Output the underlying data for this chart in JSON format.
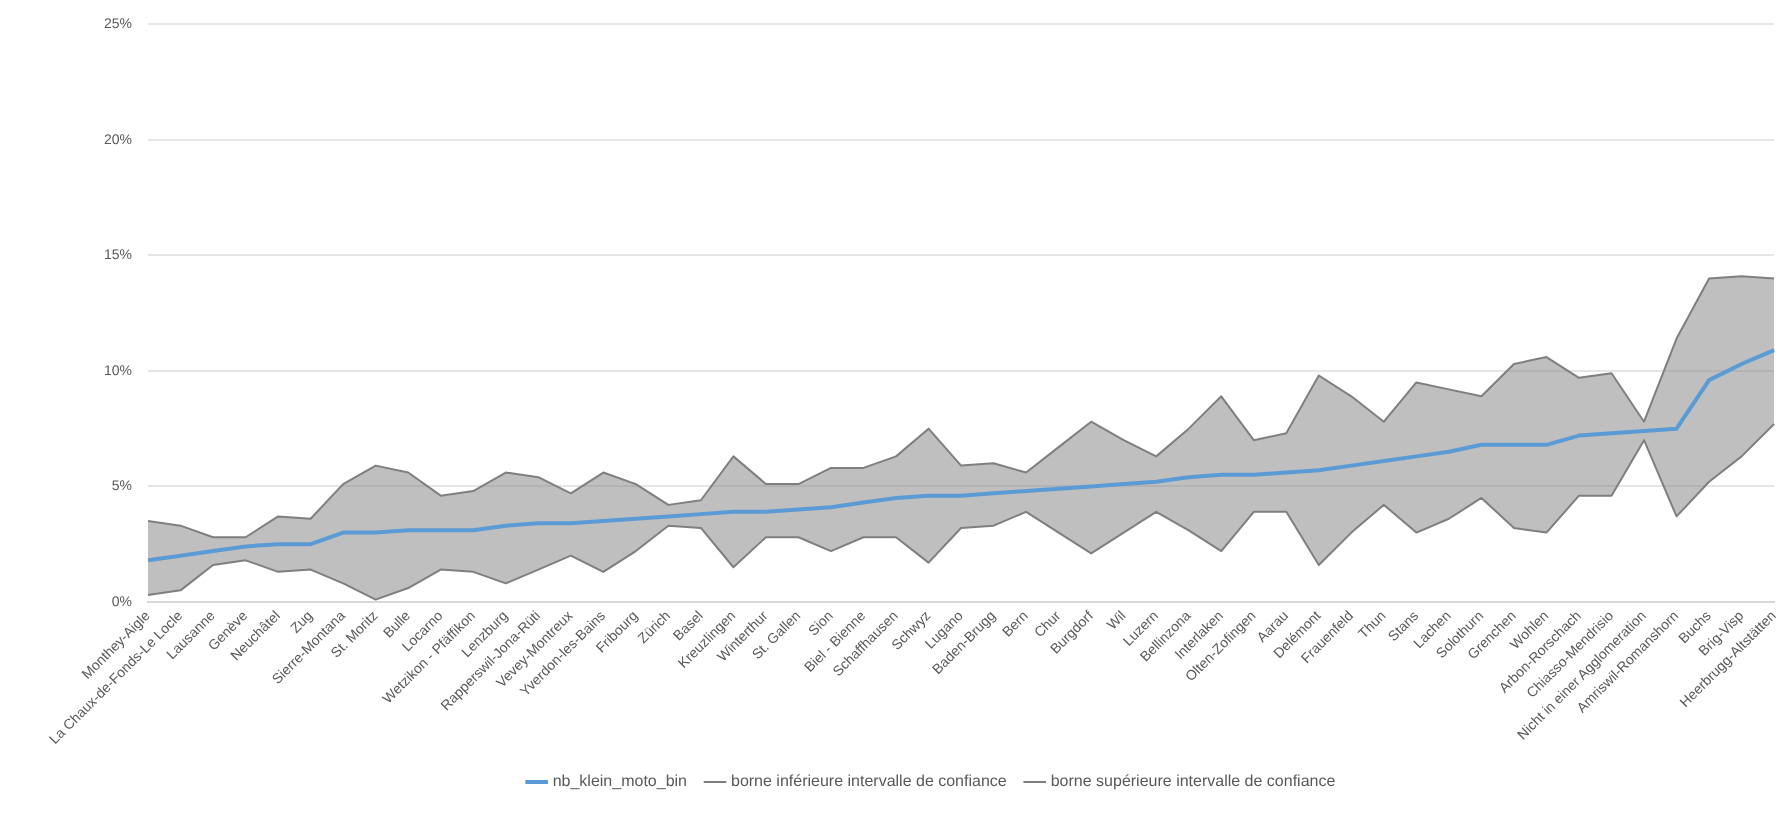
{
  "chart_data": {
    "type": "line",
    "categories": [
      "Monthey-Aigle",
      "La Chaux-de-Fonds-Le Locle",
      "Lausanne",
      "Genève",
      "Neuchâtel",
      "Zug",
      "Sierre-Montana",
      "St. Moritz",
      "Bulle",
      "Locarno",
      "Wetzikon - Pfäffikon",
      "Lenzburg",
      "Rapperswil-Jona-Rüti",
      "Vevey-Montreux",
      "Yverdon-les-Bains",
      "Fribourg",
      "Zürich",
      "Basel",
      "Kreuzlingen",
      "Winterthur",
      "St. Gallen",
      "Sion",
      "Biel - Bienne",
      "Schaffhausen",
      "Schwyz",
      "Lugano",
      "Baden-Brugg",
      "Bern",
      "Chur",
      "Burgdorf",
      "Wil",
      "Luzern",
      "Bellinzona",
      "Interlaken",
      "Olten-Zofingen",
      "Aarau",
      "Delémont",
      "Frauenfeld",
      "Thun",
      "Stans",
      "Lachen",
      "Solothurn",
      "Grenchen",
      "Wohlen",
      "Arbon-Rorschach",
      "Chiasso-Mendrisio",
      "Nicht in einer Agglomeration",
      "Amriswil-Romanshorn",
      "Buchs",
      "Brig-Visp",
      "Heerbrugg-Altstätten"
    ],
    "series": [
      {
        "name": "nb_klein_moto_bin",
        "color": "#5b9bd5",
        "values": [
          1.8,
          2.0,
          2.2,
          2.4,
          2.5,
          2.5,
          3.0,
          3.0,
          3.1,
          3.1,
          3.1,
          3.3,
          3.4,
          3.4,
          3.5,
          3.6,
          3.7,
          3.8,
          3.9,
          3.9,
          4.0,
          4.1,
          4.3,
          4.5,
          4.6,
          4.6,
          4.7,
          4.8,
          4.9,
          5.0,
          5.1,
          5.2,
          5.4,
          5.5,
          5.5,
          5.6,
          5.7,
          5.9,
          6.1,
          6.3,
          6.5,
          6.8,
          6.8,
          6.8,
          7.2,
          7.3,
          7.4,
          7.5,
          9.6,
          10.3,
          10.9
        ],
        "lower": [
          0.3,
          0.5,
          1.6,
          1.8,
          1.3,
          1.4,
          0.8,
          0.1,
          0.6,
          1.4,
          1.3,
          0.8,
          1.4,
          2.0,
          1.3,
          2.2,
          3.3,
          3.2,
          1.5,
          2.8,
          2.8,
          2.2,
          2.8,
          2.8,
          1.7,
          3.2,
          3.3,
          3.9,
          3.0,
          2.1,
          3.0,
          3.9,
          3.1,
          2.2,
          3.9,
          3.9,
          1.6,
          3.0,
          4.2,
          3.0,
          3.6,
          4.5,
          3.2,
          3.0,
          4.6,
          4.6,
          7.0,
          3.7,
          5.2,
          6.3,
          7.7
        ],
        "upper": [
          3.5,
          3.3,
          2.8,
          2.8,
          3.7,
          3.6,
          5.1,
          5.9,
          5.6,
          4.6,
          4.8,
          5.6,
          5.4,
          4.7,
          5.6,
          5.1,
          4.2,
          4.4,
          6.3,
          5.1,
          5.1,
          5.8,
          5.8,
          6.3,
          7.5,
          5.9,
          6.0,
          5.6,
          6.7,
          7.8,
          7.0,
          6.3,
          7.5,
          8.9,
          7.0,
          7.3,
          9.8,
          8.9,
          7.8,
          9.5,
          9.2,
          8.9,
          10.3,
          10.6,
          9.7,
          9.9,
          7.8,
          11.4,
          14.0,
          14.1,
          14.0
        ]
      },
      {
        "name": "borne inférieure intervalle de confiance",
        "color": "#7f7f7f",
        "values": [
          0.3,
          0.5,
          1.6,
          1.8,
          1.3,
          1.4,
          0.8,
          0.1,
          0.6,
          1.4,
          1.3,
          0.8,
          1.4,
          2.0,
          1.3,
          2.2,
          3.3,
          3.2,
          1.5,
          2.8,
          2.8,
          2.2,
          2.8,
          2.8,
          1.7,
          3.2,
          3.3,
          3.9,
          3.0,
          2.1,
          3.0,
          3.9,
          3.1,
          2.2,
          3.9,
          3.9,
          1.6,
          3.0,
          4.2,
          3.0,
          3.6,
          4.5,
          3.2,
          3.0,
          4.6,
          4.6,
          7.0,
          3.7,
          5.2,
          6.3,
          7.7
        ]
      },
      {
        "name": "borne supérieure intervalle de confiance",
        "color": "#7f7f7f",
        "values": [
          3.5,
          3.3,
          2.8,
          2.8,
          3.7,
          3.6,
          5.1,
          5.9,
          5.6,
          4.6,
          4.8,
          5.6,
          5.4,
          4.7,
          5.6,
          5.1,
          4.2,
          4.4,
          6.3,
          5.1,
          5.1,
          5.8,
          5.8,
          6.3,
          7.5,
          5.9,
          6.0,
          5.6,
          6.7,
          7.8,
          7.0,
          6.3,
          7.5,
          8.9,
          7.0,
          7.3,
          9.8,
          8.9,
          7.8,
          9.5,
          9.2,
          8.9,
          10.3,
          10.6,
          9.7,
          9.9,
          7.8,
          11.4,
          14.0,
          14.1,
          14.0
        ]
      }
    ],
    "ylim": [
      0,
      25
    ],
    "yticks": [
      {
        "value": 0,
        "label": "0%"
      },
      {
        "value": 5,
        "label": "5%"
      },
      {
        "value": 10,
        "label": "10%"
      },
      {
        "value": 15,
        "label": "15%"
      },
      {
        "value": 20,
        "label": "20%"
      },
      {
        "value": 25,
        "label": "25%"
      }
    ],
    "grid": "y",
    "legend": "bottom",
    "marker": "none",
    "line_style": "solid"
  }
}
